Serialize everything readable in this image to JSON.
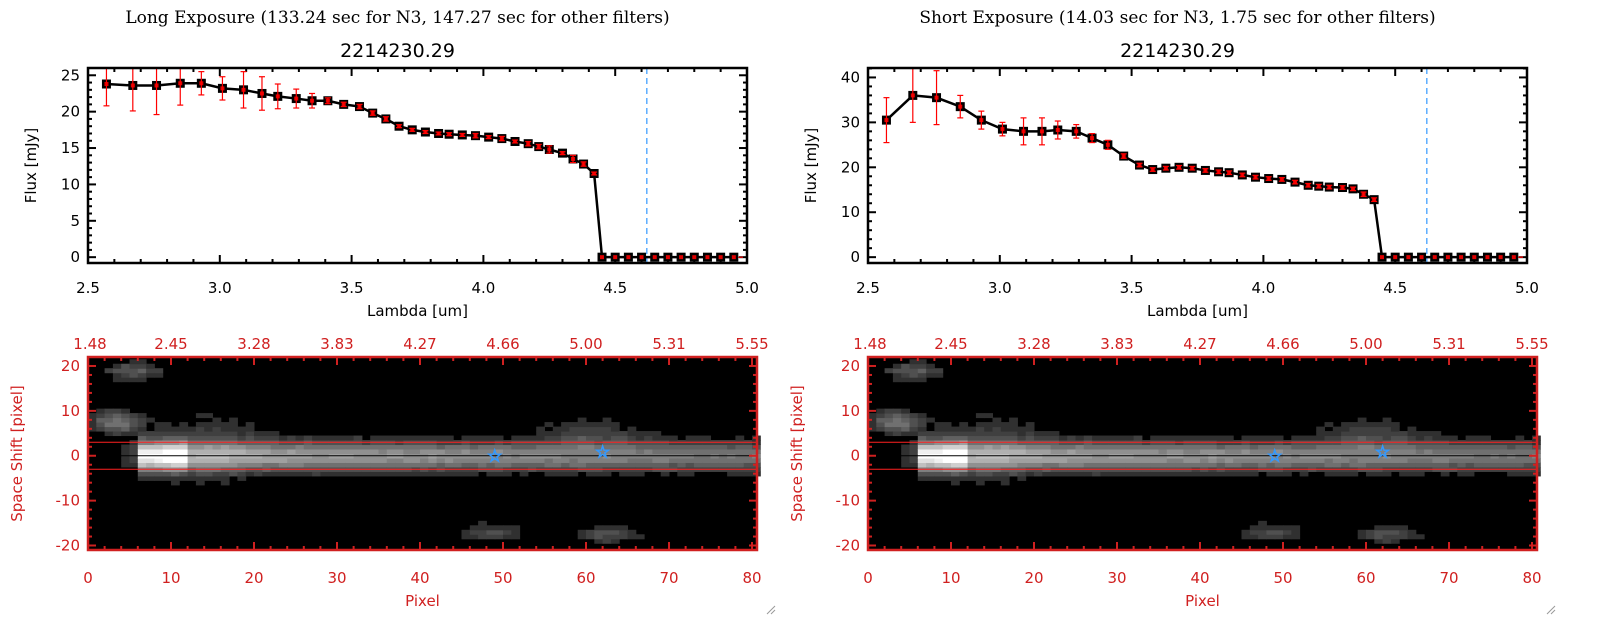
{
  "colors": {
    "data": "#ff0000",
    "line": "#000000",
    "marker_fill": "#e00000",
    "vline": "#3399ff",
    "image_axes": "#d02020",
    "star": "#3399ff"
  },
  "chart_data": [
    {
      "type": "line",
      "panel": "left",
      "title": "Long Exposure (133.24 sec for N3, 147.27 sec for other filters)",
      "subtitle": "2214230.29",
      "xlabel": "Lambda [um]",
      "ylabel": "Flux [mJy]",
      "xlim": [
        2.5,
        5.0
      ],
      "ylim": [
        -0.8,
        26
      ],
      "xticks": [
        "2.5",
        "3.0",
        "3.5",
        "4.0",
        "4.5",
        "5.0"
      ],
      "yticks": [
        "0",
        "5",
        "10",
        "15",
        "20",
        "25"
      ],
      "ytick_step": 5,
      "vline_x": 4.62,
      "x": [
        2.57,
        2.67,
        2.76,
        2.85,
        2.93,
        3.01,
        3.09,
        3.16,
        3.22,
        3.29,
        3.35,
        3.41,
        3.47,
        3.53,
        3.58,
        3.63,
        3.68,
        3.73,
        3.78,
        3.83,
        3.87,
        3.92,
        3.97,
        4.02,
        4.07,
        4.12,
        4.17,
        4.21,
        4.25,
        4.3,
        4.34,
        4.38,
        4.42,
        4.45,
        4.5,
        4.55,
        4.6,
        4.65,
        4.7,
        4.75,
        4.8,
        4.85,
        4.9,
        4.95
      ],
      "y": [
        23.8,
        23.6,
        23.6,
        23.9,
        23.9,
        23.2,
        23.0,
        22.5,
        22.1,
        21.8,
        21.5,
        21.5,
        21.0,
        20.7,
        19.8,
        19.0,
        18.0,
        17.5,
        17.2,
        17.0,
        16.9,
        16.8,
        16.7,
        16.5,
        16.3,
        15.9,
        15.6,
        15.2,
        14.8,
        14.3,
        13.5,
        12.8,
        11.5,
        0,
        0,
        0,
        0,
        0,
        0,
        0,
        0,
        0,
        0,
        0
      ],
      "yerr": [
        3,
        3.5,
        4,
        3,
        1.6,
        1.6,
        2.5,
        2.3,
        1.7,
        1.3,
        1,
        0.4,
        0.3,
        0.3,
        0.3,
        0.3,
        0.2,
        0.2,
        0.2,
        0.2,
        0.2,
        0.2,
        0.3,
        0.2,
        0.3,
        0.2,
        0.3,
        0.3,
        0.5,
        0.2,
        0.5,
        0.3,
        0.2,
        0,
        0,
        0,
        0,
        0,
        0,
        0,
        0,
        0,
        0,
        0
      ]
    },
    {
      "type": "line",
      "panel": "right",
      "title": "Short Exposure (14.03 sec for N3, 1.75 sec for other filters)",
      "subtitle": "2214230.29",
      "xlabel": "Lambda [um]",
      "ylabel": "Flux [mJy]",
      "xlim": [
        2.5,
        5.0
      ],
      "ylim": [
        -1.3,
        42.1
      ],
      "xticks": [
        "2.5",
        "3.0",
        "3.5",
        "4.0",
        "4.5",
        "5.0"
      ],
      "yticks": [
        "0",
        "10",
        "20",
        "30",
        "40"
      ],
      "ytick_step": 10,
      "vline_x": 4.62,
      "x": [
        2.57,
        2.67,
        2.76,
        2.85,
        2.93,
        3.01,
        3.09,
        3.16,
        3.22,
        3.29,
        3.35,
        3.41,
        3.47,
        3.53,
        3.58,
        3.63,
        3.68,
        3.73,
        3.78,
        3.83,
        3.87,
        3.92,
        3.97,
        4.02,
        4.07,
        4.12,
        4.17,
        4.21,
        4.25,
        4.3,
        4.34,
        4.38,
        4.42,
        4.45,
        4.5,
        4.55,
        4.6,
        4.65,
        4.7,
        4.75,
        4.8,
        4.85,
        4.9,
        4.95
      ],
      "y": [
        30.5,
        36,
        35.5,
        33.5,
        30.5,
        28.5,
        28,
        28,
        28.3,
        28,
        26.5,
        25,
        22.5,
        20.5,
        19.5,
        19.8,
        20,
        19.8,
        19.3,
        19,
        18.8,
        18.3,
        17.8,
        17.5,
        17.3,
        16.7,
        16.0,
        15.8,
        15.6,
        15.5,
        15.2,
        14.0,
        12.8,
        0,
        0,
        0,
        0,
        0,
        0,
        0,
        0,
        0,
        0,
        0
      ],
      "yerr": [
        5,
        6,
        6,
        2.5,
        2,
        1.5,
        3,
        3,
        2,
        1.5,
        1,
        1,
        0.5,
        0.4,
        0.4,
        0.4,
        0.4,
        0.4,
        0.4,
        0.4,
        0.4,
        0.4,
        0.4,
        0.4,
        0.4,
        0.4,
        0.4,
        0.4,
        0.4,
        0.4,
        0.4,
        0.5,
        0.4,
        0,
        0,
        0,
        0,
        0,
        0,
        0,
        0,
        0,
        0,
        0
      ]
    },
    {
      "type": "heatmap",
      "panel": "left-image",
      "xlabel": "Pixel",
      "ylabel": "Space Shift [pixel]",
      "xlim": [
        0,
        80.6
      ],
      "ylim": [
        -21,
        22
      ],
      "xticks": [
        "0",
        "10",
        "20",
        "30",
        "40",
        "50",
        "60",
        "70",
        "80"
      ],
      "yticks": [
        "-20",
        "-10",
        "0",
        "10",
        "20"
      ],
      "top_ticks": [
        "1.48",
        "2.45",
        "3.28",
        "3.83",
        "4.27",
        "4.66",
        "5.00",
        "5.31",
        "5.55"
      ],
      "aperture": [
        -3,
        3
      ],
      "stars": [
        [
          49,
          0
        ],
        [
          62,
          1
        ]
      ]
    },
    {
      "type": "heatmap",
      "panel": "right-image",
      "xlabel": "Pixel",
      "ylabel": "Space Shift [pixel]",
      "xlim": [
        0,
        80.6
      ],
      "ylim": [
        -21,
        22
      ],
      "xticks": [
        "0",
        "10",
        "20",
        "30",
        "40",
        "50",
        "60",
        "70",
        "80"
      ],
      "yticks": [
        "-20",
        "-10",
        "0",
        "10",
        "20"
      ],
      "top_ticks": [
        "1.48",
        "2.45",
        "3.28",
        "3.83",
        "4.27",
        "4.66",
        "5.00",
        "5.31",
        "5.55"
      ],
      "aperture": [
        -3,
        3
      ],
      "stars": [
        [
          49,
          0
        ],
        [
          62,
          1
        ]
      ]
    }
  ]
}
